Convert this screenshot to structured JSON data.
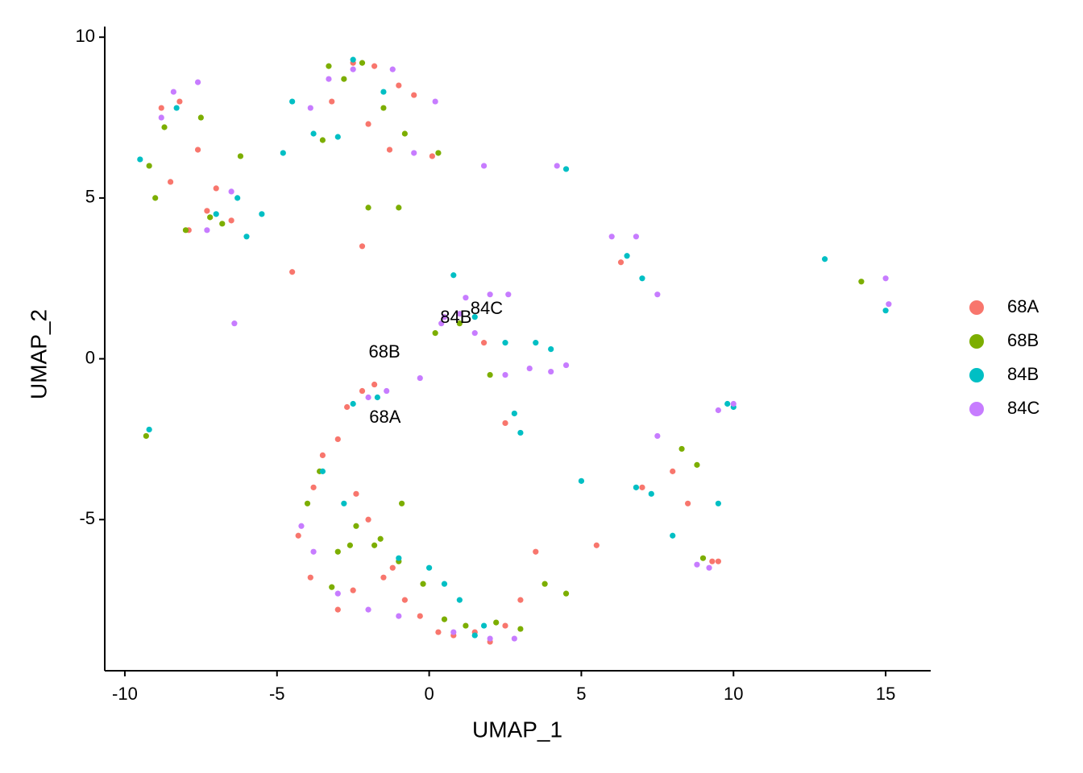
{
  "chart_data": {
    "type": "scatter",
    "x_label": "UMAP_1",
    "y_label": "UMAP_2",
    "xlim": [
      -10.66,
      16.48
    ],
    "ylim": [
      -9.7,
      10.33
    ],
    "xticks": [
      -10,
      -5,
      0,
      5,
      10,
      15
    ],
    "yticks": [
      -5,
      0,
      5,
      10
    ],
    "legend": "right",
    "annotations": [
      {
        "text": "68B",
        "x": -1.47,
        "y": 0.19
      },
      {
        "text": "68A",
        "x": -1.45,
        "y": -1.84
      },
      {
        "text": "84B",
        "x": 0.88,
        "y": 1.26
      },
      {
        "text": "84C",
        "x": 1.89,
        "y": 1.54
      }
    ],
    "series": [
      {
        "name": "68A",
        "color": "#F8766D",
        "x": [
          -8.8,
          -8.2,
          -7.6,
          -7.0,
          -6.5,
          -8.5,
          -7.9,
          -7.3,
          -2.5,
          -1.8,
          -1.0,
          -0.5,
          -3.2,
          -2.0,
          -1.3,
          0.1,
          -4.3,
          -3.8,
          -3.5,
          -3.0,
          -2.7,
          -2.2,
          -1.8,
          -1.2,
          -0.8,
          -0.3,
          0.3,
          0.8,
          1.5,
          2.0,
          2.5,
          3.0,
          3.5,
          -3.9,
          -3.0,
          -2.5,
          -1.5,
          -2.0,
          -2.4,
          5.5,
          7.0,
          8.0,
          9.5,
          9.3,
          8.5,
          -4.5,
          -2.2,
          6.3,
          2.5,
          1.8
        ],
        "values": [
          7.8,
          8.0,
          6.5,
          5.3,
          4.3,
          5.5,
          4.0,
          4.6,
          9.2,
          9.1,
          8.5,
          8.2,
          8.0,
          7.3,
          6.5,
          6.3,
          -5.5,
          -4.0,
          -3.0,
          -2.5,
          -1.5,
          -1.0,
          -0.8,
          -6.5,
          -7.5,
          -8.0,
          -8.5,
          -8.6,
          -8.5,
          -8.8,
          -8.3,
          -7.5,
          -6.0,
          -6.8,
          -7.8,
          -7.2,
          -6.8,
          -5.0,
          -4.2,
          -5.8,
          -4.0,
          -3.5,
          -6.3,
          -6.3,
          -4.5,
          2.7,
          3.5,
          3.0,
          -2.0,
          0.5
        ]
      },
      {
        "name": "68B",
        "color": "#7CAE00",
        "x": [
          -9.2,
          -8.7,
          -8.0,
          -7.5,
          -6.8,
          -6.2,
          -9.0,
          -7.2,
          -3.3,
          -2.8,
          -2.2,
          -1.5,
          -0.8,
          0.3,
          -3.5,
          -2.0,
          -1.0,
          -9.3,
          -4.0,
          -3.6,
          -3.0,
          -2.4,
          -1.8,
          -1.0,
          -0.2,
          0.5,
          1.2,
          2.2,
          3.0,
          3.8,
          4.5,
          -3.2,
          -2.6,
          -1.6,
          -0.9,
          8.3,
          9.0,
          8.8,
          14.2,
          1.0,
          2.0,
          0.2
        ],
        "values": [
          6.0,
          7.2,
          4.0,
          7.5,
          4.2,
          6.3,
          5.0,
          4.4,
          9.1,
          8.7,
          9.2,
          7.8,
          7.0,
          6.4,
          6.8,
          4.7,
          4.7,
          -2.4,
          -4.5,
          -3.5,
          -6.0,
          -5.2,
          -5.8,
          -6.3,
          -7.0,
          -8.1,
          -8.3,
          -8.2,
          -8.4,
          -7.0,
          -7.3,
          -7.1,
          -5.8,
          -5.6,
          -4.5,
          -2.8,
          -6.2,
          -3.3,
          2.4,
          1.1,
          -0.5,
          0.8
        ]
      },
      {
        "name": "84B",
        "color": "#00BFC4",
        "x": [
          -9.5,
          -8.3,
          -7.0,
          -6.3,
          -5.5,
          -4.8,
          -6.0,
          -4.5,
          -3.8,
          -2.5,
          -1.5,
          -3.0,
          -9.2,
          -2.5,
          -1.7,
          -3.5,
          -1.0,
          0.0,
          0.5,
          1.0,
          1.5,
          1.8,
          2.8,
          3.0,
          -2.8,
          0.8,
          1.5,
          2.5,
          3.5,
          4.0,
          4.5,
          6.5,
          7.0,
          9.8,
          10.0,
          13.0,
          15.0,
          5.0,
          6.8,
          7.3,
          8.0,
          9.5
        ],
        "values": [
          6.2,
          7.8,
          4.5,
          5.0,
          4.5,
          6.4,
          3.8,
          8.0,
          7.0,
          9.3,
          8.3,
          6.9,
          -2.2,
          -1.4,
          -1.2,
          -3.5,
          -6.2,
          -6.5,
          -7.0,
          -7.5,
          -8.6,
          -8.3,
          -1.7,
          -2.3,
          -4.5,
          2.6,
          1.3,
          0.5,
          0.5,
          0.3,
          5.9,
          3.2,
          2.5,
          -1.4,
          -1.5,
          3.1,
          1.5,
          -3.8,
          -4.0,
          -4.2,
          -5.5,
          -4.5
        ]
      },
      {
        "name": "84C",
        "color": "#C77CFF",
        "x": [
          -8.4,
          -7.6,
          -8.8,
          -7.3,
          -6.5,
          -6.4,
          -3.9,
          -3.3,
          -2.5,
          -1.2,
          0.2,
          1.8,
          -0.5,
          -2.0,
          -1.4,
          -0.3,
          0.5,
          1.2,
          2.0,
          2.6,
          1.0,
          1.5,
          2.5,
          3.3,
          -4.2,
          -3.8,
          -3.0,
          -2.0,
          -1.0,
          0.8,
          2.0,
          2.8,
          4.0,
          4.5,
          4.2,
          6.0,
          6.8,
          7.5,
          9.5,
          10.0,
          15.0,
          15.1,
          8.8,
          9.2,
          7.5,
          0.4
        ],
        "values": [
          8.3,
          8.6,
          7.5,
          4.0,
          5.2,
          1.1,
          7.8,
          8.7,
          9.0,
          9.0,
          8.0,
          6.0,
          6.4,
          -1.2,
          -1.0,
          -0.6,
          1.3,
          1.9,
          2.0,
          2.0,
          1.4,
          0.8,
          -0.5,
          -0.3,
          -5.2,
          -6.0,
          -7.3,
          -7.8,
          -8.0,
          -8.5,
          -8.7,
          -8.7,
          -0.4,
          -0.2,
          6.0,
          3.8,
          3.8,
          2.0,
          -1.6,
          -1.4,
          2.5,
          1.7,
          -6.4,
          -6.5,
          -2.4,
          1.1
        ]
      }
    ]
  }
}
